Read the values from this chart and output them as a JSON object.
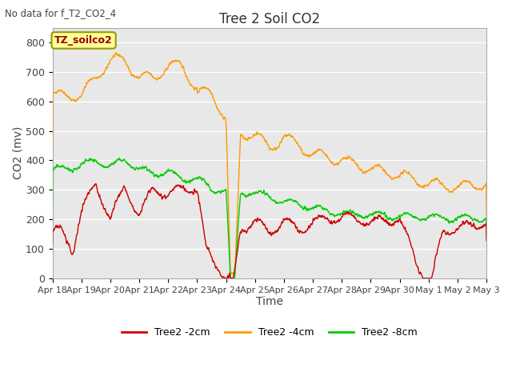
{
  "title": "Tree 2 Soil CO2",
  "subtitle": "No data for f_T2_CO2_4",
  "xlabel": "Time",
  "ylabel": "CO2 (mv)",
  "ylim": [
    0,
    850
  ],
  "yticks": [
    0,
    100,
    200,
    300,
    400,
    500,
    600,
    700,
    800
  ],
  "xtick_labels": [
    "Apr 18",
    "Apr 19",
    "Apr 20",
    "Apr 21",
    "Apr 22",
    "Apr 23",
    "Apr 24",
    "Apr 25",
    "Apr 26",
    "Apr 27",
    "Apr 28",
    "Apr 29",
    "Apr 30",
    "May 1",
    "May 2",
    "May 3"
  ],
  "legend_label_box": "TZ_soilco2",
  "series": {
    "red": {
      "label": "Tree2 -2cm",
      "color": "#cc0000"
    },
    "orange": {
      "label": "Tree2 -4cm",
      "color": "#ff9900"
    },
    "green": {
      "label": "Tree2 -8cm",
      "color": "#00cc00"
    }
  },
  "background_color": "#ffffff",
  "plot_bg_color": "#e8e8e8",
  "grid_color": "#ffffff",
  "title_fontsize": 12,
  "axis_fontsize": 10,
  "tick_fontsize": 9,
  "legend_box_color": "#ffff99",
  "legend_box_edge": "#999900",
  "legend_box_text": "#990000"
}
